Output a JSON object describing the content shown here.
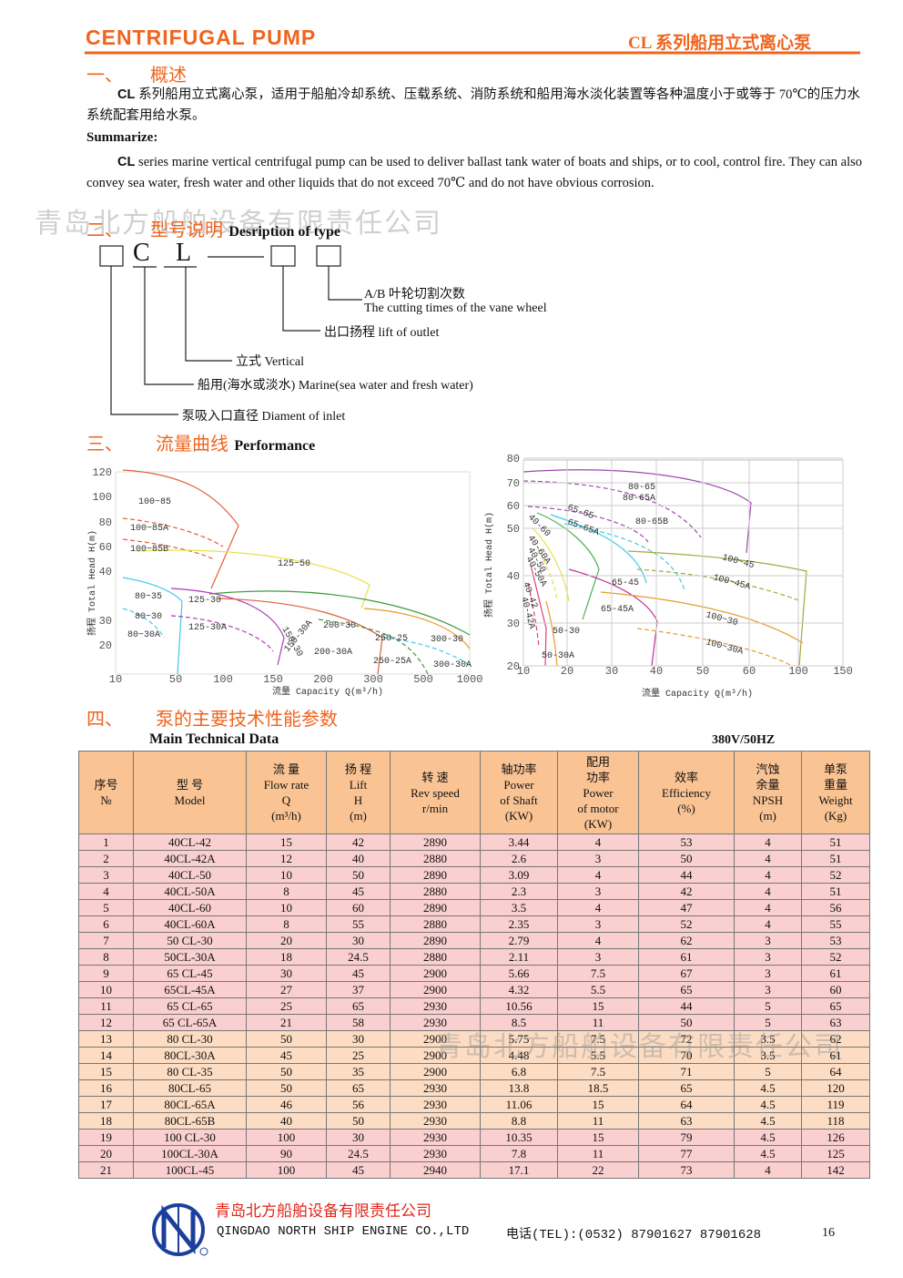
{
  "header": {
    "title": "CENTRIFUGAL PUMP",
    "subtitle": "CL 系列船用立式离心泵"
  },
  "watermark": "青岛北方船舶设备有限责任公司",
  "overview": {
    "number": "一、",
    "heading": "概述",
    "zh_lead": "CL",
    "zh_text": "系列船用立式离心泵，适用于船舶冷却系统、压载系统、消防系统和船用海水淡化装置等各种温度小于或等于 70℃的压力水系统配套用给水泵。",
    "summarize": "Summarize:",
    "en_lead": "CL",
    "en_text": "series marine vertical centrifugal pump can be used to deliver ballast tank water of boats and ships, or to cool, control fire. They can also convey sea water, fresh water and other liquids that do not exceed 70℃  and do not have obvious corrosion."
  },
  "type": {
    "number": "二、",
    "heading": "型号说明",
    "heading_en": "Desription of type",
    "code": [
      "C",
      "L"
    ],
    "labels": [
      "A/B 叶轮切割次数",
      "The cutting times of the vane wheel",
      "出口扬程  lift of outlet",
      "立式   Vertical",
      "船用(海水或淡水) Marine(sea water and fresh water)",
      "泵吸入口直径   Diament of inlet"
    ]
  },
  "performance": {
    "number": "三、",
    "heading": "流量曲线",
    "heading_en": "Performance",
    "charts": [
      {
        "yticks": [
          120,
          100,
          80,
          60,
          40,
          30,
          20
        ],
        "xticks": [
          10,
          50,
          100,
          150,
          200,
          300,
          500,
          1000
        ],
        "ylabel": "扬程 Total Head  H(m)",
        "xlabel": "流量 Capacity  Q(m³/h)",
        "curve_labels": [
          "100~85",
          "100~85A",
          "100~85B",
          "125~50",
          "80~35",
          "125-30",
          "80~30",
          "80~30A",
          "125-30A",
          "150-30",
          "150-30A",
          "200-30",
          "200-30A",
          "250-25",
          "250-25A",
          "300-30",
          "300-30A"
        ]
      },
      {
        "yticks": [
          80,
          70,
          60,
          50,
          40,
          30,
          20
        ],
        "xticks": [
          10,
          20,
          30,
          40,
          50,
          60,
          100,
          150
        ],
        "ylabel": "扬程 Total Head  H(m)",
        "xlabel": "流量 Capacity  Q(m³/h)",
        "curve_labels": [
          "80-65",
          "80-65A",
          "80-65B",
          "65-65",
          "65-65A",
          "40-60",
          "40-60A",
          "40-50",
          "40-50A",
          "40-42",
          "40-42A",
          "100~45",
          "100~45A",
          "65-45",
          "65-45A",
          "100~30",
          "100~30A",
          "50-30",
          "50-30A"
        ]
      }
    ]
  },
  "specs": {
    "number": "四、",
    "heading": "泵的主要技术性能参数",
    "heading_en": "Main Technical Data",
    "power": "380V/50HZ",
    "columns": [
      [
        "序号",
        "№"
      ],
      [
        "型 号",
        "Model"
      ],
      [
        "流 量",
        "Flow rate",
        "Q",
        "(m³/h)"
      ],
      [
        "扬 程",
        "Lift",
        "H",
        "(m)"
      ],
      [
        "转  速",
        "Rev speed",
        "r/min"
      ],
      [
        "轴功率",
        "Power",
        "of Shaft",
        "(KW)"
      ],
      [
        "配用",
        "功率",
        "Power",
        "of motor",
        "(KW)"
      ],
      [
        "效率",
        "Efficiency",
        "(%)"
      ],
      [
        "汽蚀",
        "余量",
        "NPSH",
        "(m)"
      ],
      [
        "单泵",
        "重量",
        "Weight",
        "(Kg)"
      ]
    ],
    "rows": [
      [
        "1",
        "40CL-42",
        "15",
        "42",
        "2890",
        "3.44",
        "4",
        "53",
        "4",
        "51"
      ],
      [
        "2",
        "40CL-42A",
        "12",
        "40",
        "2880",
        "2.6",
        "3",
        "50",
        "4",
        "51"
      ],
      [
        "3",
        "40CL-50",
        "10",
        "50",
        "2890",
        "3.09",
        "4",
        "44",
        "4",
        "52"
      ],
      [
        "4",
        "40CL-50A",
        "8",
        "45",
        "2880",
        "2.3",
        "3",
        "42",
        "4",
        "51"
      ],
      [
        "5",
        "40CL-60",
        "10",
        "60",
        "2890",
        "3.5",
        "4",
        "47",
        "4",
        "56"
      ],
      [
        "6",
        "40CL-60A",
        "8",
        "55",
        "2880",
        "2.35",
        "3",
        "52",
        "4",
        "55"
      ],
      [
        "7",
        "50 CL-30",
        "20",
        "30",
        "2890",
        "2.79",
        "4",
        "62",
        "3",
        "53"
      ],
      [
        "8",
        "50CL-30A",
        "18",
        "24.5",
        "2880",
        "2.11",
        "3",
        "61",
        "3",
        "52"
      ],
      [
        "9",
        "65 CL-45",
        "30",
        "45",
        "2900",
        "5.66",
        "7.5",
        "67",
        "3",
        "61"
      ],
      [
        "10",
        "65CL-45A",
        "27",
        "37",
        "2900",
        "4.32",
        "5.5",
        "65",
        "3",
        "60"
      ],
      [
        "11",
        "65 CL-65",
        "25",
        "65",
        "2930",
        "10.56",
        "15",
        "44",
        "5",
        "65"
      ],
      [
        "12",
        "65 CL-65A",
        "21",
        "58",
        "2930",
        "8.5",
        "11",
        "50",
        "5",
        "63"
      ],
      [
        "13",
        "80 CL-30",
        "50",
        "30",
        "2900",
        "5.75",
        "7.5",
        "72",
        "3.5",
        "62"
      ],
      [
        "14",
        "80CL-30A",
        "45",
        "25",
        "2900",
        "4.48",
        "5.5",
        "70",
        "3.5",
        "61"
      ],
      [
        "15",
        "80 CL-35",
        "50",
        "35",
        "2900",
        "6.8",
        "7.5",
        "71",
        "5",
        "64"
      ],
      [
        "16",
        "80CL-65",
        "50",
        "65",
        "2930",
        "13.8",
        "18.5",
        "65",
        "4.5",
        "120"
      ],
      [
        "17",
        "80CL-65A",
        "46",
        "56",
        "2930",
        "11.06",
        "15",
        "64",
        "4.5",
        "119"
      ],
      [
        "18",
        "80CL-65B",
        "40",
        "50",
        "2930",
        "8.8",
        "11",
        "63",
        "4.5",
        "118"
      ],
      [
        "19",
        "100 CL-30",
        "100",
        "30",
        "2930",
        "10.35",
        "15",
        "79",
        "4.5",
        "126"
      ],
      [
        "20",
        "100CL-30A",
        "90",
        "24.5",
        "2930",
        "7.8",
        "11",
        "77",
        "4.5",
        "125"
      ],
      [
        "21",
        "100CL-45",
        "100",
        "45",
        "2940",
        "17.1",
        "22",
        "73",
        "4",
        "142"
      ]
    ]
  },
  "footer": {
    "company": "青岛北方船舶设备有限责任公司",
    "company_en": "QINGDAO NORTH SHIP ENGINE CO.,LTD",
    "phone": "电话(TEL):(0532)  87901627  87901628",
    "page": "16"
  }
}
